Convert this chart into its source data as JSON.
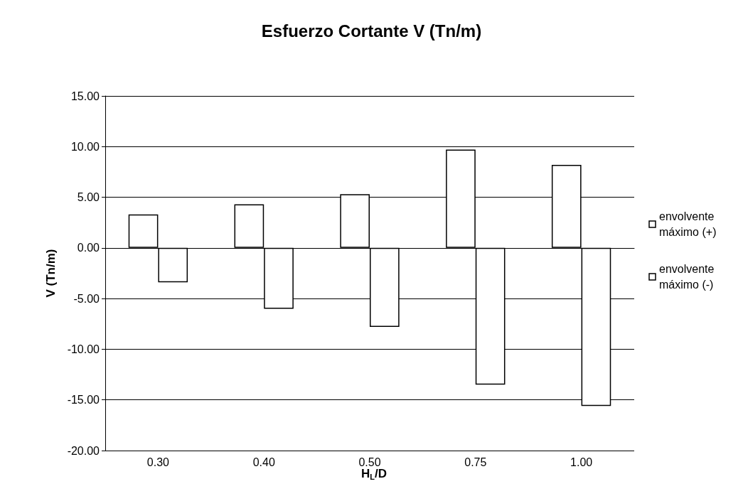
{
  "chart_data": {
    "type": "bar",
    "title": "Esfuerzo Cortante V (Tn/m)",
    "xlabel": "H$_{L}$/D",
    "ylabel": "V (Tn/m)",
    "categories": [
      "0.30",
      "0.40",
      "0.50",
      "0.75",
      "1.00"
    ],
    "series": [
      {
        "name": "envolvente máximo (+)",
        "color": "#ffffff",
        "values": [
          3.3,
          4.3,
          5.3,
          9.7,
          8.2
        ]
      },
      {
        "name": "envolvente máximo (-)",
        "color": "#ffffff",
        "values": [
          -3.4,
          -6.0,
          -7.8,
          -13.5,
          -15.6
        ]
      }
    ],
    "ylim": [
      -20,
      15
    ],
    "yticks": [
      {
        "value": -20,
        "label": "-20.00"
      },
      {
        "value": -15,
        "label": "-15.00"
      },
      {
        "value": -10,
        "label": "-10.00"
      },
      {
        "value": -5,
        "label": "-5.00"
      },
      {
        "value": 0,
        "label": "0.00"
      },
      {
        "value": 5,
        "label": "5.00"
      },
      {
        "value": 10,
        "label": "10.00"
      },
      {
        "value": 15,
        "label": "15.00"
      }
    ],
    "grid": "y",
    "legend": "right"
  }
}
